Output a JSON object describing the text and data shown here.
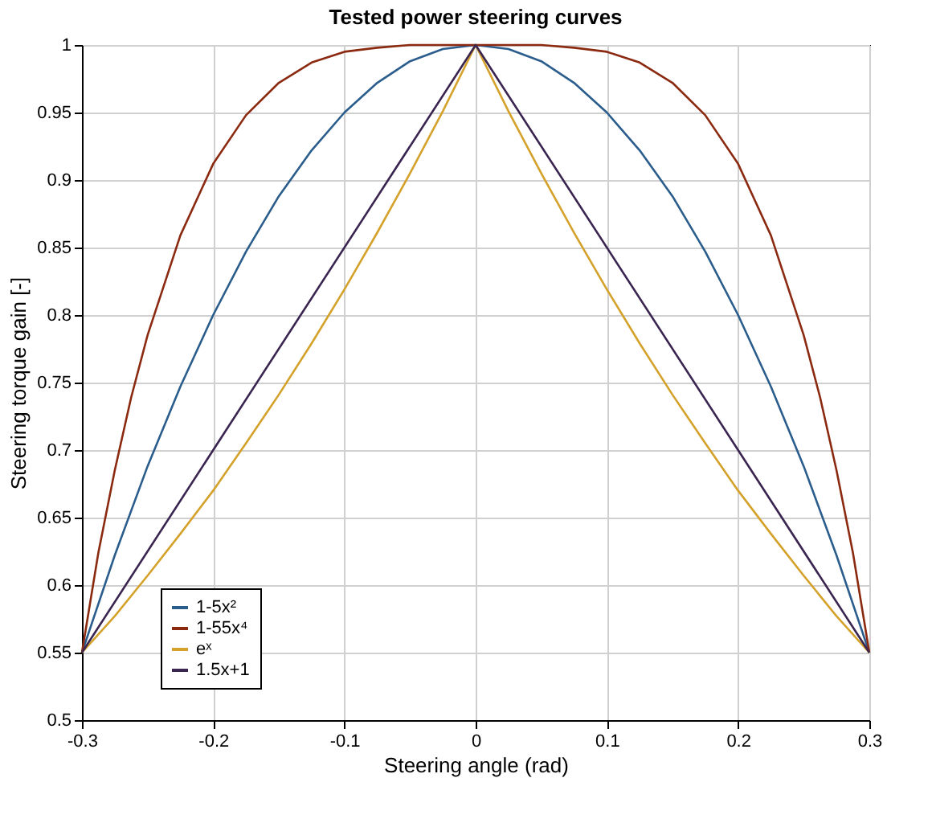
{
  "chart_data": {
    "type": "line",
    "title": "Tested power steering curves",
    "xlabel": "Steering angle (rad)",
    "ylabel": "Steering torque gain [-]",
    "xlim": [
      -0.3,
      0.3
    ],
    "xticks": [
      -0.3,
      -0.2,
      -0.1,
      0,
      0.1,
      0.2,
      0.3
    ],
    "ylim": [
      0.5,
      1
    ],
    "yticks": [
      0.5,
      0.55,
      0.6,
      0.65,
      0.7,
      0.75,
      0.8,
      0.85,
      0.9,
      0.95,
      1
    ],
    "grid": true,
    "legend": "bottom left",
    "line_style": "solid",
    "marker": "none",
    "series": [
      {
        "name": "1-5x²",
        "color": "#2b5d8c",
        "x": [
          -0.3,
          -0.275,
          -0.25,
          -0.225,
          -0.2,
          -0.175,
          -0.15,
          -0.125,
          -0.1,
          -0.075,
          -0.05,
          -0.025,
          0,
          0.025,
          0.05,
          0.075,
          0.1,
          0.125,
          0.15,
          0.175,
          0.2,
          0.225,
          0.25,
          0.275,
          0.3
        ],
        "values": [
          0.55,
          0.622,
          0.688,
          0.747,
          0.8,
          0.847,
          0.888,
          0.922,
          0.95,
          0.972,
          0.988,
          0.997,
          1,
          0.997,
          0.988,
          0.972,
          0.95,
          0.922,
          0.888,
          0.847,
          0.8,
          0.747,
          0.688,
          0.622,
          0.55
        ]
      },
      {
        "name": "1-55x⁴",
        "color": "#8b2a10",
        "x": [
          -0.3,
          -0.2875,
          -0.275,
          -0.2625,
          -0.25,
          -0.225,
          -0.2,
          -0.175,
          -0.15,
          -0.125,
          -0.1,
          -0.075,
          -0.05,
          0,
          0.05,
          0.075,
          0.1,
          0.125,
          0.15,
          0.175,
          0.2,
          0.225,
          0.25,
          0.2625,
          0.275,
          0.2875,
          0.3
        ],
        "values": [
          0.55,
          0.624,
          0.685,
          0.739,
          0.785,
          0.859,
          0.912,
          0.948,
          0.972,
          0.987,
          0.995,
          0.998,
          1,
          1,
          1,
          0.998,
          0.995,
          0.987,
          0.972,
          0.948,
          0.912,
          0.859,
          0.785,
          0.739,
          0.685,
          0.624,
          0.55
        ]
      },
      {
        "name": "eˣ",
        "color": "#d4a22a",
        "x": [
          -0.3,
          -0.275,
          -0.25,
          -0.225,
          -0.2,
          -0.175,
          -0.15,
          -0.125,
          -0.1,
          -0.075,
          -0.05,
          -0.025,
          0,
          0.025,
          0.05,
          0.075,
          0.1,
          0.125,
          0.15,
          0.175,
          0.2,
          0.225,
          0.25,
          0.275,
          0.3
        ],
        "values": [
          0.55,
          0.577,
          0.607,
          0.638,
          0.67,
          0.705,
          0.741,
          0.779,
          0.819,
          0.861,
          0.905,
          0.951,
          1,
          0.951,
          0.905,
          0.861,
          0.819,
          0.779,
          0.741,
          0.705,
          0.67,
          0.638,
          0.607,
          0.577,
          0.55
        ]
      },
      {
        "name": "1.5x+1",
        "color": "#3a2550",
        "x": [
          -0.3,
          0,
          0.3
        ],
        "values": [
          0.55,
          1,
          0.55
        ]
      }
    ]
  }
}
